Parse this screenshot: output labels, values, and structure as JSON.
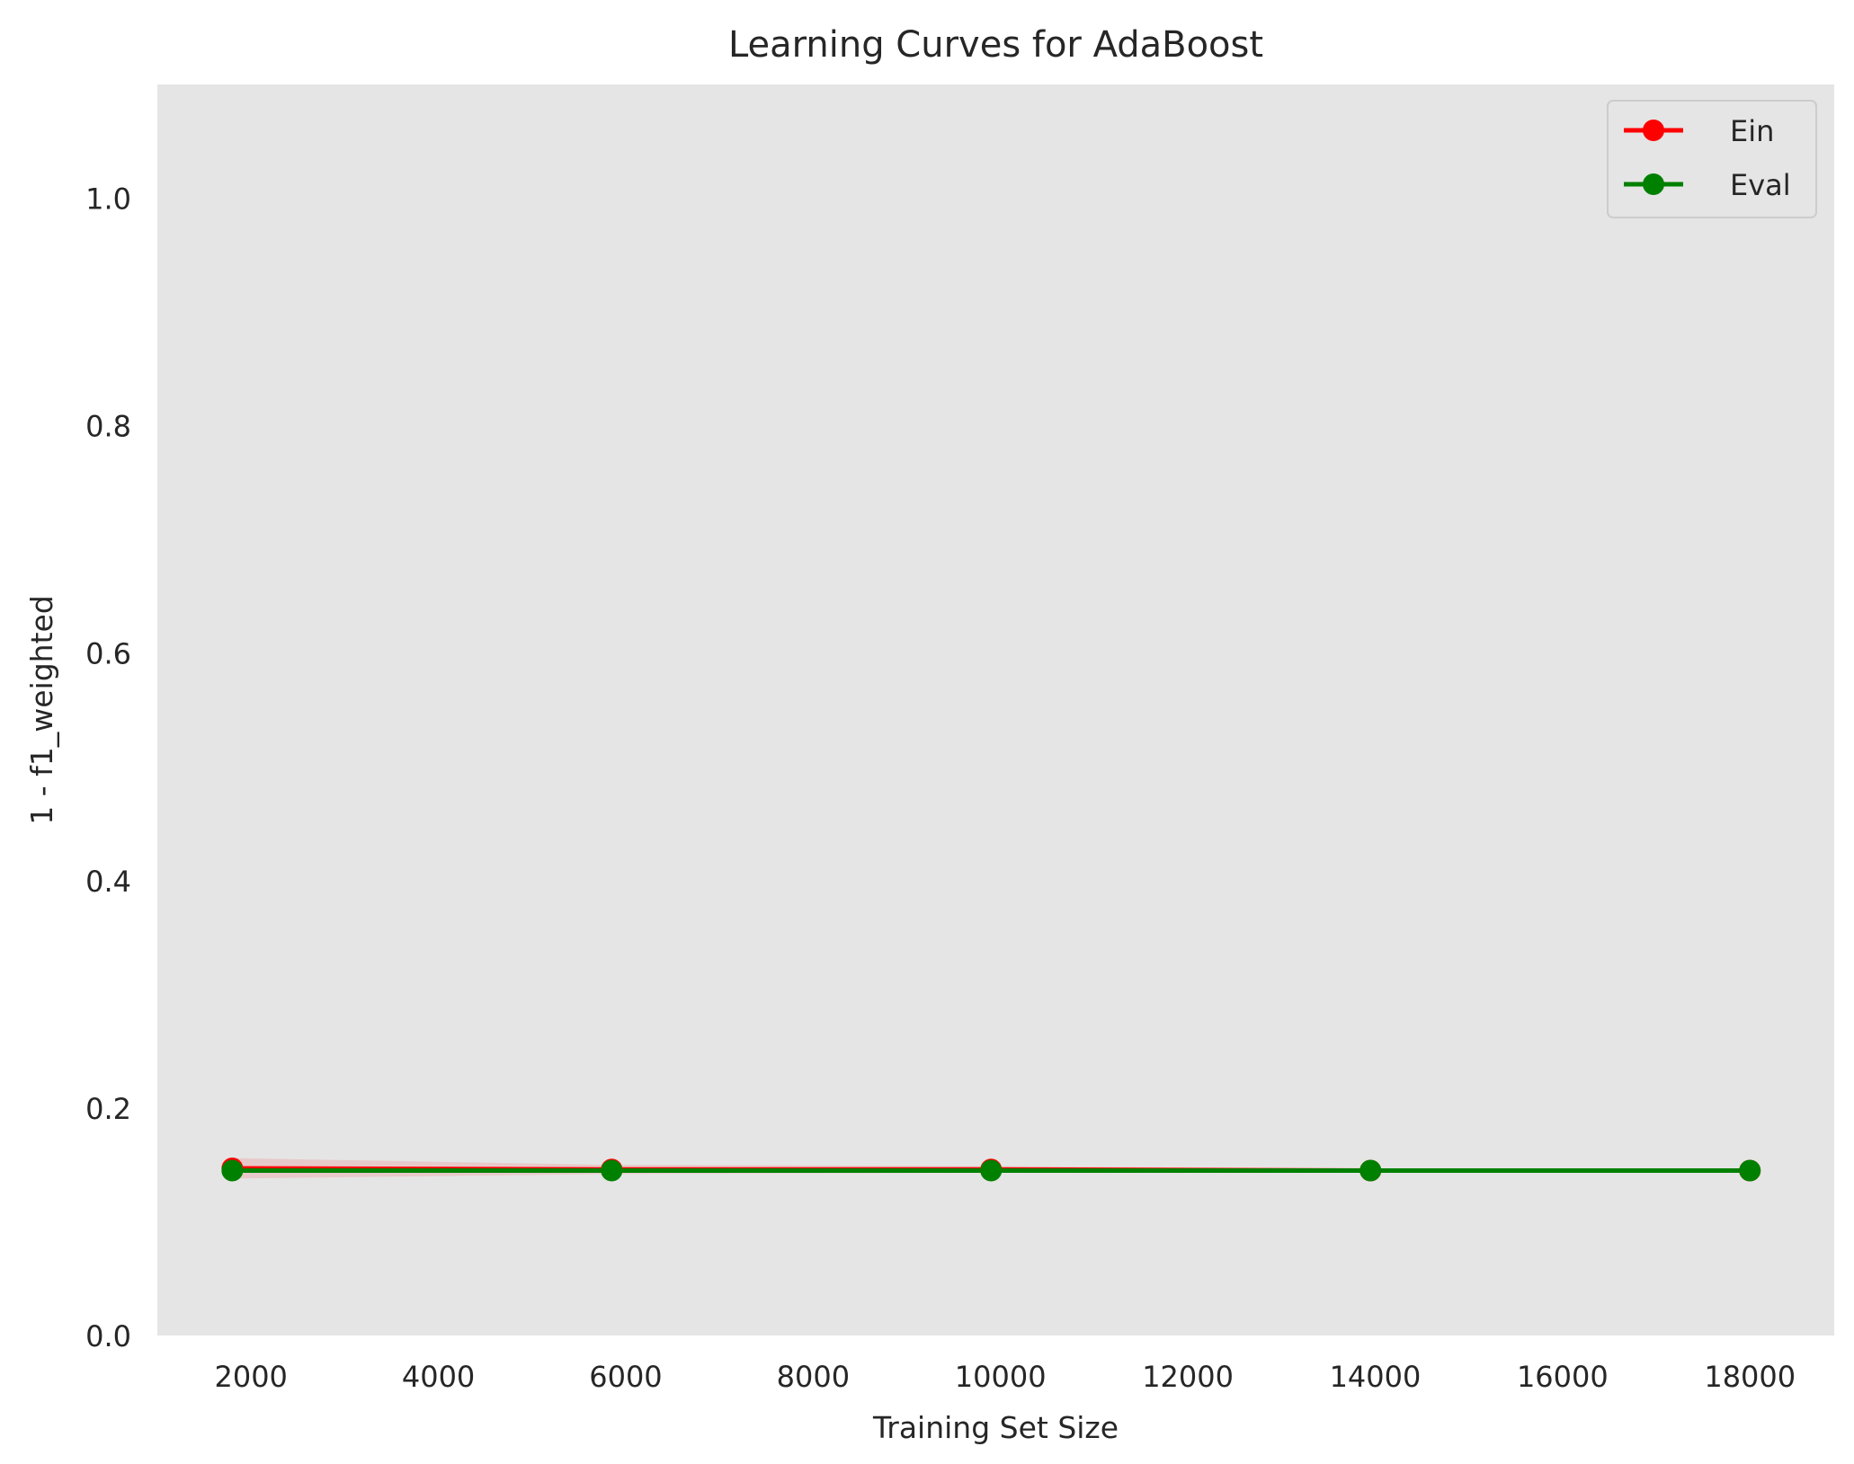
{
  "chart_data": {
    "type": "line",
    "title": "Learning Curves for AdaBoost",
    "xlabel": "Training Set Size",
    "ylabel": "1 - f1_weighted",
    "xlim": [
      1000,
      18900
    ],
    "ylim": [
      0.0,
      1.1
    ],
    "xticks": [
      2000,
      4000,
      6000,
      8000,
      10000,
      12000,
      14000,
      16000,
      18000
    ],
    "yticks": [
      0.0,
      0.2,
      0.4,
      0.6,
      0.8,
      1.0
    ],
    "ytick_labels": [
      "0.0",
      "0.2",
      "0.4",
      "0.6",
      "0.8",
      "1.0"
    ],
    "grid": false,
    "legend_position": "top-right",
    "x": [
      1800,
      5850,
      9900,
      13950,
      18000
    ],
    "series": [
      {
        "name": "Ein",
        "color": "#ff0000",
        "values": [
          0.147,
          0.146,
          0.146,
          0.145,
          0.145
        ],
        "band_lower": [
          0.138,
          0.142,
          0.143,
          0.143,
          0.144
        ],
        "band_upper": [
          0.156,
          0.15,
          0.149,
          0.147,
          0.146
        ]
      },
      {
        "name": "Eval",
        "color": "#008000",
        "values": [
          0.145,
          0.145,
          0.145,
          0.145,
          0.145
        ],
        "band_lower": [
          0.143,
          0.143,
          0.143,
          0.144,
          0.144
        ],
        "band_upper": [
          0.147,
          0.147,
          0.147,
          0.146,
          0.146
        ]
      }
    ],
    "colors": {
      "plot_background": "#e5e5e5",
      "text": "#262626",
      "legend_border": "#cccccc"
    }
  }
}
